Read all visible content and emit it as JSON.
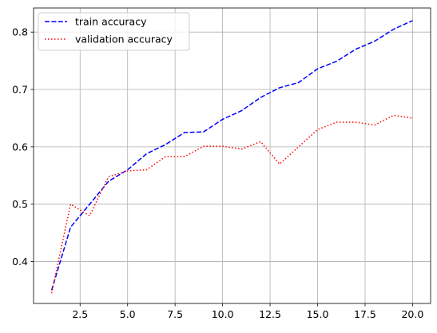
{
  "chart_data": {
    "type": "line",
    "title": "",
    "xlabel": "",
    "ylabel": "",
    "xlim": [
      0.05,
      20.95
    ],
    "ylim": [
      0.327,
      0.842
    ],
    "grid": true,
    "legend_position": "top-left",
    "x_ticks": [
      2.5,
      5.0,
      7.5,
      10.0,
      12.5,
      15.0,
      17.5,
      20.0
    ],
    "x_tick_labels": [
      "2.5",
      "5.0",
      "7.5",
      "10.0",
      "12.5",
      "15.0",
      "17.5",
      "20.0"
    ],
    "y_ticks": [
      0.4,
      0.5,
      0.6,
      0.7,
      0.8
    ],
    "y_tick_labels": [
      "0.4",
      "0.5",
      "0.6",
      "0.7",
      "0.8"
    ],
    "x": [
      1,
      2,
      3,
      4,
      5,
      6,
      7,
      8,
      9,
      10,
      11,
      12,
      13,
      14,
      15,
      16,
      17,
      18,
      19,
      20
    ],
    "series": [
      {
        "name": "train accuracy",
        "color": "#0000ff",
        "style": "dashed",
        "values": [
          0.35,
          0.46,
          0.5,
          0.54,
          0.56,
          0.588,
          0.604,
          0.625,
          0.626,
          0.648,
          0.663,
          0.686,
          0.703,
          0.712,
          0.736,
          0.749,
          0.77,
          0.784,
          0.805,
          0.82
        ]
      },
      {
        "name": "validation accuracy",
        "color": "#ff0000",
        "style": "dotted",
        "values": [
          0.345,
          0.5,
          0.48,
          0.548,
          0.558,
          0.56,
          0.583,
          0.583,
          0.601,
          0.601,
          0.596,
          0.609,
          0.57,
          0.6,
          0.63,
          0.643,
          0.643,
          0.638,
          0.655,
          0.65
        ]
      }
    ]
  }
}
